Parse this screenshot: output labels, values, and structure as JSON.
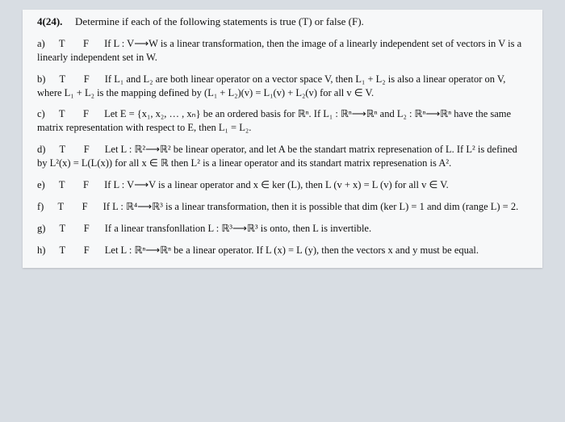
{
  "header": {
    "number": "4(24).",
    "desc": "Determine if each of the following statements is true (T) or false (F)."
  },
  "tf": {
    "T": "T",
    "F": "F"
  },
  "items": {
    "a": {
      "label": "a)",
      "text": "If L : V⟶W is a linear transformation, then the image of a linearly independent set of vectors in V is a linearly independent set in W."
    },
    "b": {
      "label": "b)",
      "text": "If L₁ and L₂ are both linear operator on a vector space V, then L₁ + L₂ is also a linear operator on V, where L₁ + L₂ is the mapping defined by (L₁ + L₂)(v) = L₁(v) + L₂(v) for all v ∈ V."
    },
    "c": {
      "label": "c)",
      "text": "Let E = {x₁, x₂, … , xₙ} be an ordered basis for ℝⁿ. If L₁ : ℝⁿ⟶ℝⁿ and L₂ : ℝⁿ⟶ℝⁿ have the same matrix representation with respect to E, then L₁ = L₂."
    },
    "d": {
      "label": "d)",
      "text": "Let L : ℝ²⟶ℝ² be linear operator, and let A be the standart matrix represenation of L. If L² is defined by L²(x) = L(L(x)) for all x ∈ ℝ then L² is a linear operator and its standart matrix represenation is A²."
    },
    "e": {
      "label": "e)",
      "text": "If L : V⟶V is a linear operator and x ∈ ker (L), then L (v + x) = L (v) for all v ∈ V."
    },
    "f": {
      "label": "f)",
      "text": "If L : ℝ⁴⟶ℝ³ is a linear transformation, then it is possible that dim (ker L) = 1 and dim (range L) = 2."
    },
    "g": {
      "label": "g)",
      "text": "If a linear transfonllation L : ℝ³⟶ℝ³ is onto, then L is invertible."
    },
    "h": {
      "label": "h)",
      "text": "Let L : ℝⁿ⟶ℝⁿ be a linear operator. If L (x) = L (y), then the vectors x and y must be equal."
    }
  }
}
